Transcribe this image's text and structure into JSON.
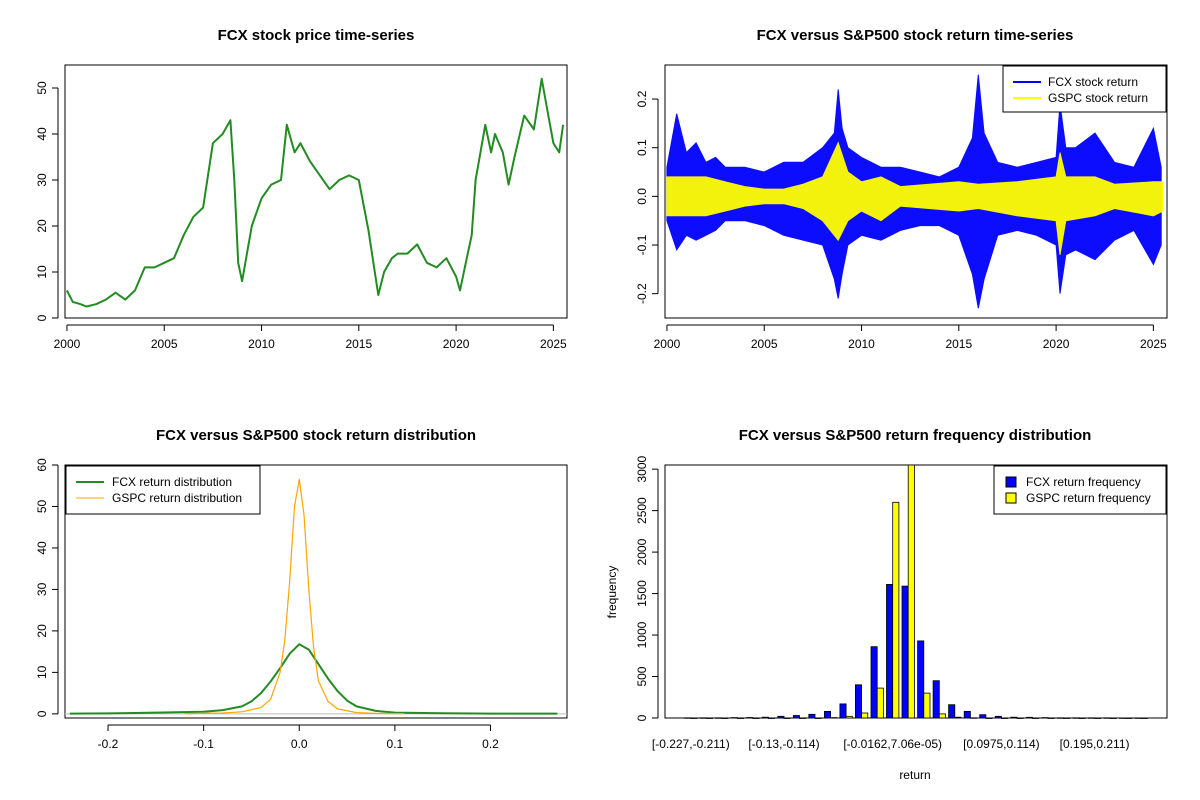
{
  "chart_data": [
    {
      "type": "line",
      "title": "FCX stock price time-series",
      "xlim": [
        1999.9,
        2025.7
      ],
      "ylim": [
        0,
        55
      ],
      "x_ticks": [
        "2000",
        "2005",
        "2010",
        "2015",
        "2020",
        "2025"
      ],
      "y_ticks": [
        "0",
        "10",
        "20",
        "30",
        "40",
        "50"
      ],
      "grid": false,
      "series": [
        {
          "color": "#228b22",
          "x": [
            2000.0,
            2000.3,
            2000.7,
            2001.0,
            2001.5,
            2002.0,
            2002.5,
            2003.0,
            2003.5,
            2004.0,
            2004.5,
            2005.0,
            2005.5,
            2006.0,
            2006.5,
            2007.0,
            2007.5,
            2008.0,
            2008.4,
            2008.6,
            2008.8,
            2009.0,
            2009.5,
            2010.0,
            2010.5,
            2011.0,
            2011.3,
            2011.7,
            2012.0,
            2012.5,
            2013.0,
            2013.5,
            2014.0,
            2014.5,
            2015.0,
            2015.5,
            2016.0,
            2016.3,
            2016.7,
            2017.0,
            2017.5,
            2018.0,
            2018.5,
            2019.0,
            2019.5,
            2020.0,
            2020.2,
            2020.5,
            2020.8,
            2021.0,
            2021.5,
            2021.8,
            2022.0,
            2022.4,
            2022.7,
            2023.0,
            2023.5,
            2024.0,
            2024.4,
            2024.7,
            2025.0,
            2025.3,
            2025.5
          ],
          "y": [
            6,
            3.5,
            3,
            2.5,
            3,
            4,
            5.5,
            4,
            6,
            11,
            11,
            12,
            13,
            18,
            22,
            24,
            38,
            40,
            43,
            30,
            12,
            8,
            20,
            26,
            29,
            30,
            42,
            36,
            38,
            34,
            31,
            28,
            30,
            31,
            30,
            19,
            5,
            10,
            13,
            14,
            14,
            16,
            12,
            11,
            13,
            9,
            6,
            12,
            18,
            30,
            42,
            36,
            40,
            36,
            29,
            35,
            44,
            41,
            52,
            45,
            38,
            36,
            42
          ]
        }
      ]
    },
    {
      "type": "line",
      "title": "FCX versus S&P500 stock return time-series",
      "xlim": [
        1999.9,
        2025.7
      ],
      "ylim": [
        -0.25,
        0.27
      ],
      "x_ticks": [
        "2000",
        "2005",
        "2010",
        "2015",
        "2020",
        "2025"
      ],
      "y_ticks": [
        "-0.2",
        "-0.1",
        "0.0",
        "0.1",
        "0.2"
      ],
      "grid": false,
      "legend": "top-right",
      "series": [
        {
          "name": "FCX stock return",
          "color": "#0000ff",
          "x": [
            2000.0,
            2000.5,
            2001.0,
            2001.5,
            2002.0,
            2002.5,
            2003.0,
            2004.0,
            2005.0,
            2006.0,
            2007.0,
            2008.0,
            2008.6,
            2008.8,
            2009.0,
            2009.3,
            2010.0,
            2011.0,
            2012.0,
            2013.0,
            2014.0,
            2015.0,
            2015.7,
            2016.0,
            2016.3,
            2017.0,
            2018.0,
            2019.0,
            2020.0,
            2020.2,
            2020.5,
            2021.0,
            2022.0,
            2023.0,
            2024.0,
            2025.0,
            2025.4
          ],
          "y_upper": [
            0.06,
            0.17,
            0.09,
            0.11,
            0.07,
            0.08,
            0.06,
            0.06,
            0.05,
            0.07,
            0.07,
            0.1,
            0.13,
            0.22,
            0.14,
            0.1,
            0.08,
            0.06,
            0.06,
            0.05,
            0.04,
            0.06,
            0.12,
            0.25,
            0.13,
            0.07,
            0.06,
            0.07,
            0.08,
            0.19,
            0.1,
            0.1,
            0.13,
            0.07,
            0.06,
            0.14,
            0.06
          ],
          "y_lower": [
            -0.05,
            -0.11,
            -0.08,
            -0.09,
            -0.08,
            -0.07,
            -0.05,
            -0.05,
            -0.06,
            -0.08,
            -0.09,
            -0.1,
            -0.17,
            -0.21,
            -0.16,
            -0.1,
            -0.08,
            -0.09,
            -0.07,
            -0.06,
            -0.06,
            -0.08,
            -0.16,
            -0.23,
            -0.17,
            -0.08,
            -0.07,
            -0.08,
            -0.1,
            -0.2,
            -0.12,
            -0.11,
            -0.13,
            -0.09,
            -0.07,
            -0.14,
            -0.1
          ]
        },
        {
          "name": "GSPC stock return",
          "color": "#ffff00",
          "x": [
            2000.0,
            2001.0,
            2002.0,
            2003.0,
            2004.0,
            2005.0,
            2006.0,
            2007.0,
            2008.0,
            2008.8,
            2009.3,
            2010.0,
            2011.0,
            2012.0,
            2015.0,
            2016.0,
            2018.0,
            2020.0,
            2020.2,
            2020.5,
            2022.0,
            2023.0,
            2025.0,
            2025.5
          ],
          "y_upper": [
            0.04,
            0.04,
            0.04,
            0.03,
            0.02,
            0.015,
            0.015,
            0.025,
            0.04,
            0.11,
            0.05,
            0.03,
            0.04,
            0.02,
            0.03,
            0.025,
            0.03,
            0.04,
            0.09,
            0.04,
            0.04,
            0.025,
            0.03,
            0.03
          ],
          "y_lower": [
            -0.04,
            -0.04,
            -0.04,
            -0.03,
            -0.02,
            -0.015,
            -0.015,
            -0.025,
            -0.05,
            -0.09,
            -0.05,
            -0.03,
            -0.05,
            -0.02,
            -0.03,
            -0.025,
            -0.04,
            -0.05,
            -0.12,
            -0.05,
            -0.04,
            -0.025,
            -0.04,
            -0.03
          ]
        }
      ]
    },
    {
      "type": "line",
      "title": "FCX versus S&P500 stock return distribution",
      "xlim": [
        -0.245,
        0.28
      ],
      "ylim": [
        -1,
        60
      ],
      "x_ticks": [
        "-0.2",
        "-0.1",
        "0.0",
        "0.1",
        "0.2"
      ],
      "y_ticks": [
        "0",
        "10",
        "20",
        "30",
        "40",
        "50",
        "60"
      ],
      "grid": false,
      "legend": "top-left",
      "series": [
        {
          "name": "FCX return distribution",
          "color": "#228b22",
          "x": [
            -0.24,
            -0.2,
            -0.15,
            -0.1,
            -0.08,
            -0.06,
            -0.05,
            -0.04,
            -0.03,
            -0.02,
            -0.01,
            0.0,
            0.01,
            0.02,
            0.03,
            0.04,
            0.05,
            0.06,
            0.08,
            0.1,
            0.15,
            0.2,
            0.27
          ],
          "y": [
            0.05,
            0.1,
            0.3,
            0.5,
            0.9,
            1.8,
            3.0,
            5.0,
            7.8,
            11.0,
            14.5,
            16.8,
            15.5,
            12.0,
            8.5,
            5.5,
            3.2,
            1.8,
            0.7,
            0.3,
            0.15,
            0.05,
            0.05
          ]
        },
        {
          "name": "GSPC return distribution",
          "color": "#ffa500",
          "x": [
            -0.12,
            -0.08,
            -0.06,
            -0.04,
            -0.03,
            -0.02,
            -0.015,
            -0.01,
            -0.005,
            0.0,
            0.005,
            0.01,
            0.015,
            0.02,
            0.03,
            0.04,
            0.06,
            0.08,
            0.11
          ],
          "y": [
            0.05,
            0.2,
            0.5,
            1.5,
            3.5,
            10.0,
            18.0,
            32.0,
            50.0,
            56.5,
            48.0,
            30.0,
            16.0,
            8.0,
            3.0,
            1.2,
            0.3,
            0.1,
            0.05
          ]
        }
      ]
    },
    {
      "type": "bar",
      "title": "FCX versus S&P500 return frequency distribution",
      "xlabel": "return",
      "ylabel": "frequency",
      "ylim": [
        0,
        3050
      ],
      "y_ticks": [
        "0",
        "500",
        "1000",
        "1500",
        "2000",
        "2500",
        "3000"
      ],
      "x_tick_labels": [
        "[-0.227,-0.211)",
        "[-0.13,-0.114)",
        "[-0.0162,7.06e-05)",
        "[0.0975,0.114)",
        "[0.195,0.211)"
      ],
      "x_tick_bin_index": [
        0,
        6,
        13,
        20,
        26
      ],
      "bin_count": 30,
      "grid": false,
      "legend": "top-right",
      "series": [
        {
          "name": "FCX return frequency",
          "color": "#0000ff",
          "values": [
            2,
            3,
            3,
            5,
            6,
            10,
            20,
            30,
            45,
            80,
            170,
            400,
            860,
            1610,
            1590,
            930,
            450,
            160,
            80,
            40,
            20,
            10,
            8,
            5,
            3,
            3,
            2,
            2,
            1,
            1
          ]
        },
        {
          "name": "GSPC return frequency",
          "color": "#ffff00",
          "values": [
            0,
            0,
            0,
            0,
            0,
            0,
            0,
            0,
            0,
            5,
            20,
            60,
            360,
            2600,
            3050,
            300,
            50,
            10,
            3,
            0,
            0,
            0,
            0,
            0,
            0,
            0,
            0,
            0,
            0,
            0
          ]
        }
      ]
    }
  ]
}
